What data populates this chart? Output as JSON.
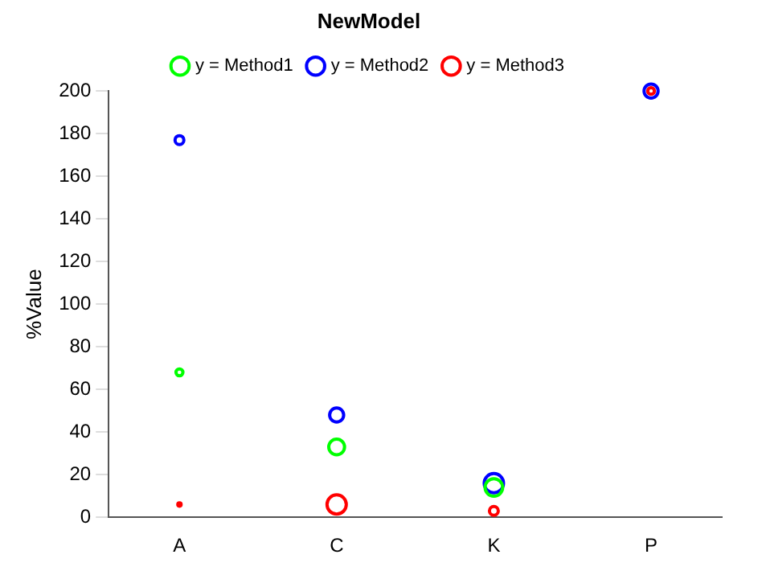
{
  "chart_data": {
    "type": "bubble",
    "title": "NewModel",
    "ylabel": "%Value",
    "categories": [
      "A",
      "C",
      "K",
      "P"
    ],
    "series": [
      {
        "name": "y = Method1",
        "color": "#00ff00",
        "values": [
          68,
          33,
          14,
          null
        ],
        "sizes": [
          0.13,
          0.67,
          0.83,
          null
        ]
      },
      {
        "name": "y = Method2",
        "color": "#0000ff",
        "values": [
          177,
          48,
          16,
          200
        ],
        "sizes": [
          0.21,
          0.53,
          1,
          0.53
        ]
      },
      {
        "name": "y = Method3",
        "color": "#ff0000",
        "values": [
          6,
          6,
          3,
          200
        ],
        "sizes": [
          0.03,
          1,
          0.21,
          0.12
        ]
      }
    ],
    "ylim": [
      0,
      200
    ],
    "yticks": [
      0,
      20,
      40,
      60,
      80,
      100,
      120,
      140,
      160,
      180,
      200
    ],
    "grid": false,
    "legend": "top",
    "marker": "circle"
  }
}
